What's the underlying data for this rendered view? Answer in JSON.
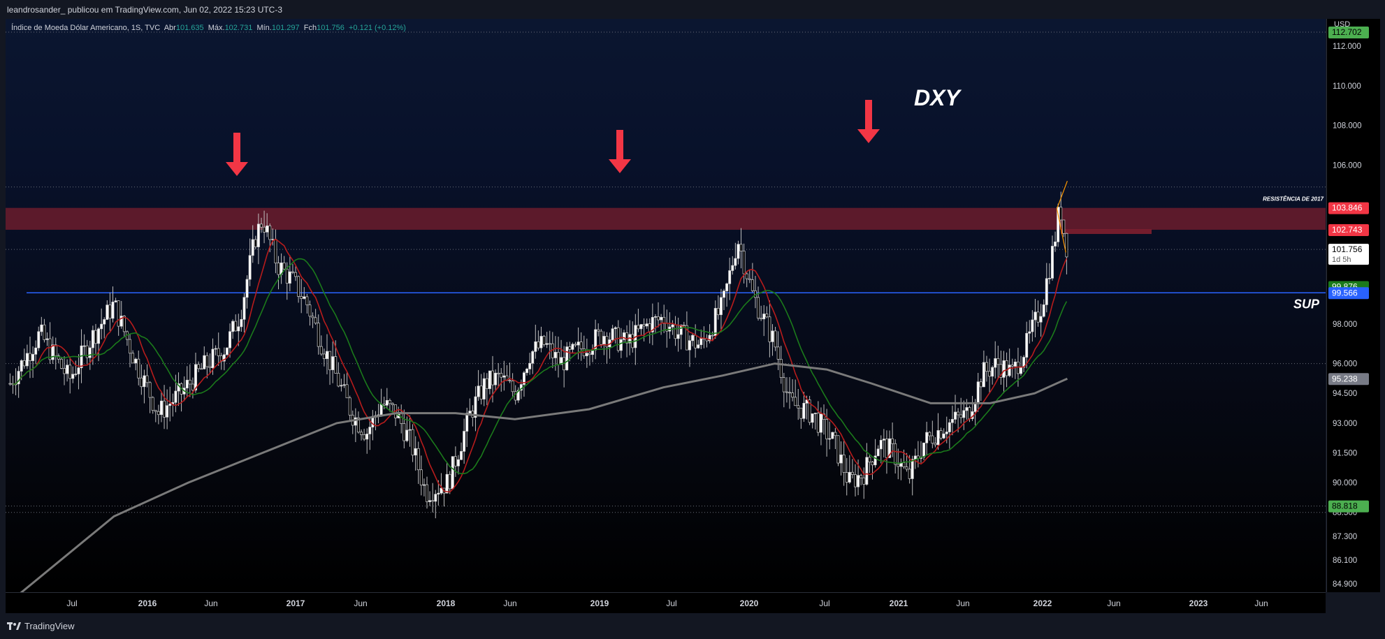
{
  "header": {
    "publish_info": "leandrosander_ publicou em TradingView.com, Jun 02, 2022 15:23 UTC-3"
  },
  "legend": {
    "symbol": "Índice de Moeda Dólar Americano, 1S, TVC",
    "open_label": "Abr",
    "open": "101.635",
    "high_label": "Máx.",
    "high": "102.731",
    "low_label": "Mín.",
    "low": "101.297",
    "close_label": "Fch",
    "close": "101.756",
    "change": "+0.121 (+0.12%)"
  },
  "footer": {
    "brand": "TradingView"
  },
  "colors": {
    "bull_candle": "#ffffff",
    "bear_candle": "#cfcfcf",
    "ma_fast": "#b71c1c",
    "ma_mid": "#1b7a1b",
    "ma_slow": "#7a7a7a",
    "resistance_zone": "#7a1f2e",
    "support_line": "#2962ff",
    "arrow": "#f23645"
  },
  "chart_data": {
    "type": "candlestick",
    "title": "DXY",
    "currency": "USD",
    "ylim": [
      84.0,
      113.5
    ],
    "y_ticks": [
      "112.000",
      "110.000",
      "108.000",
      "106.000",
      "103.846",
      "102.743",
      "101.756",
      "99.876",
      "99.566",
      "98.000",
      "96.000",
      "95.238",
      "94.500",
      "93.000",
      "91.500",
      "90.000",
      "88.818",
      "88.500",
      "87.300",
      "86.100",
      "84.900"
    ],
    "x_ticks": [
      "Jul",
      "2016",
      "Jun",
      "2017",
      "Jun",
      "2018",
      "Jun",
      "2019",
      "Jul",
      "2020",
      "Jul",
      "2021",
      "Jun",
      "2022",
      "Jun",
      "2023",
      "Jun"
    ],
    "price_labels": [
      {
        "value": 112.702,
        "text": "112.702",
        "bg": "#4caf50",
        "fg": "#000000"
      },
      {
        "value": 103.846,
        "text": "103.846",
        "bg": "#f23645",
        "fg": "#ffffff"
      },
      {
        "value": 102.743,
        "text": "102.743",
        "bg": "#f23645",
        "fg": "#ffffff"
      },
      {
        "value": 101.756,
        "text": "101.756",
        "sub": "1d 5h",
        "bg": "#ffffff",
        "fg": "#000000"
      },
      {
        "value": 99.876,
        "text": "99.876",
        "bg": "#1b7a1b",
        "fg": "#ffffff"
      },
      {
        "value": 99.566,
        "text": "99.566",
        "bg": "#2962ff",
        "fg": "#ffffff"
      },
      {
        "value": 95.238,
        "text": "95.238",
        "bg": "#787b86",
        "fg": "#ffffff"
      },
      {
        "value": 88.818,
        "text": "88.818",
        "bg": "#4caf50",
        "fg": "#000000"
      }
    ],
    "horizontal_levels": [
      112.702,
      104.9,
      101.756,
      96.0,
      88.818,
      88.5
    ],
    "resistance_zone": {
      "label": "RESISTÊNCIA DE 2017",
      "low": 102.743,
      "high": 103.846
    },
    "support": {
      "label": "SUP",
      "value": 99.566
    },
    "arrows_at": [
      "2017",
      "2020",
      "2022"
    ],
    "price_path": [
      [
        2015.3,
        95.0
      ],
      [
        2015.5,
        97.5
      ],
      [
        2015.7,
        95.2
      ],
      [
        2015.85,
        97.3
      ],
      [
        2016.0,
        99.0
      ],
      [
        2016.15,
        96.0
      ],
      [
        2016.3,
        93.5
      ],
      [
        2016.45,
        94.5
      ],
      [
        2016.6,
        95.8
      ],
      [
        2016.75,
        96.8
      ],
      [
        2016.85,
        98.5
      ],
      [
        2016.95,
        102.3
      ],
      [
        2017.0,
        103.3
      ],
      [
        2017.1,
        101.0
      ],
      [
        2017.2,
        100.2
      ],
      [
        2017.3,
        99.0
      ],
      [
        2017.4,
        97.0
      ],
      [
        2017.5,
        95.3
      ],
      [
        2017.6,
        93.5
      ],
      [
        2017.7,
        92.5
      ],
      [
        2017.8,
        94.0
      ],
      [
        2017.9,
        93.5
      ],
      [
        2018.0,
        92.0
      ],
      [
        2018.1,
        89.5
      ],
      [
        2018.25,
        90.0
      ],
      [
        2018.4,
        93.5
      ],
      [
        2018.5,
        95.0
      ],
      [
        2018.6,
        95.3
      ],
      [
        2018.7,
        94.5
      ],
      [
        2018.8,
        96.5
      ],
      [
        2018.9,
        97.0
      ],
      [
        2019.0,
        96.0
      ],
      [
        2019.15,
        96.8
      ],
      [
        2019.3,
        97.5
      ],
      [
        2019.45,
        97.0
      ],
      [
        2019.6,
        98.0
      ],
      [
        2019.7,
        98.3
      ],
      [
        2019.8,
        97.5
      ],
      [
        2019.95,
        96.9
      ],
      [
        2020.1,
        98.9
      ],
      [
        2020.2,
        102.3
      ],
      [
        2020.3,
        99.5
      ],
      [
        2020.45,
        97.0
      ],
      [
        2020.55,
        94.0
      ],
      [
        2020.7,
        93.5
      ],
      [
        2020.85,
        92.0
      ],
      [
        2020.95,
        90.0
      ],
      [
        2021.05,
        90.5
      ],
      [
        2021.15,
        92.0
      ],
      [
        2021.25,
        91.5
      ],
      [
        2021.35,
        90.2
      ],
      [
        2021.45,
        92.0
      ],
      [
        2021.6,
        92.9
      ],
      [
        2021.75,
        93.5
      ],
      [
        2021.85,
        95.5
      ],
      [
        2021.95,
        96.0
      ],
      [
        2022.05,
        95.5
      ],
      [
        2022.15,
        97.0
      ],
      [
        2022.25,
        99.0
      ],
      [
        2022.33,
        102.0
      ],
      [
        2022.37,
        104.0
      ],
      [
        2022.4,
        102.5
      ],
      [
        2022.42,
        101.76
      ]
    ],
    "overlay_text": "DXY"
  }
}
